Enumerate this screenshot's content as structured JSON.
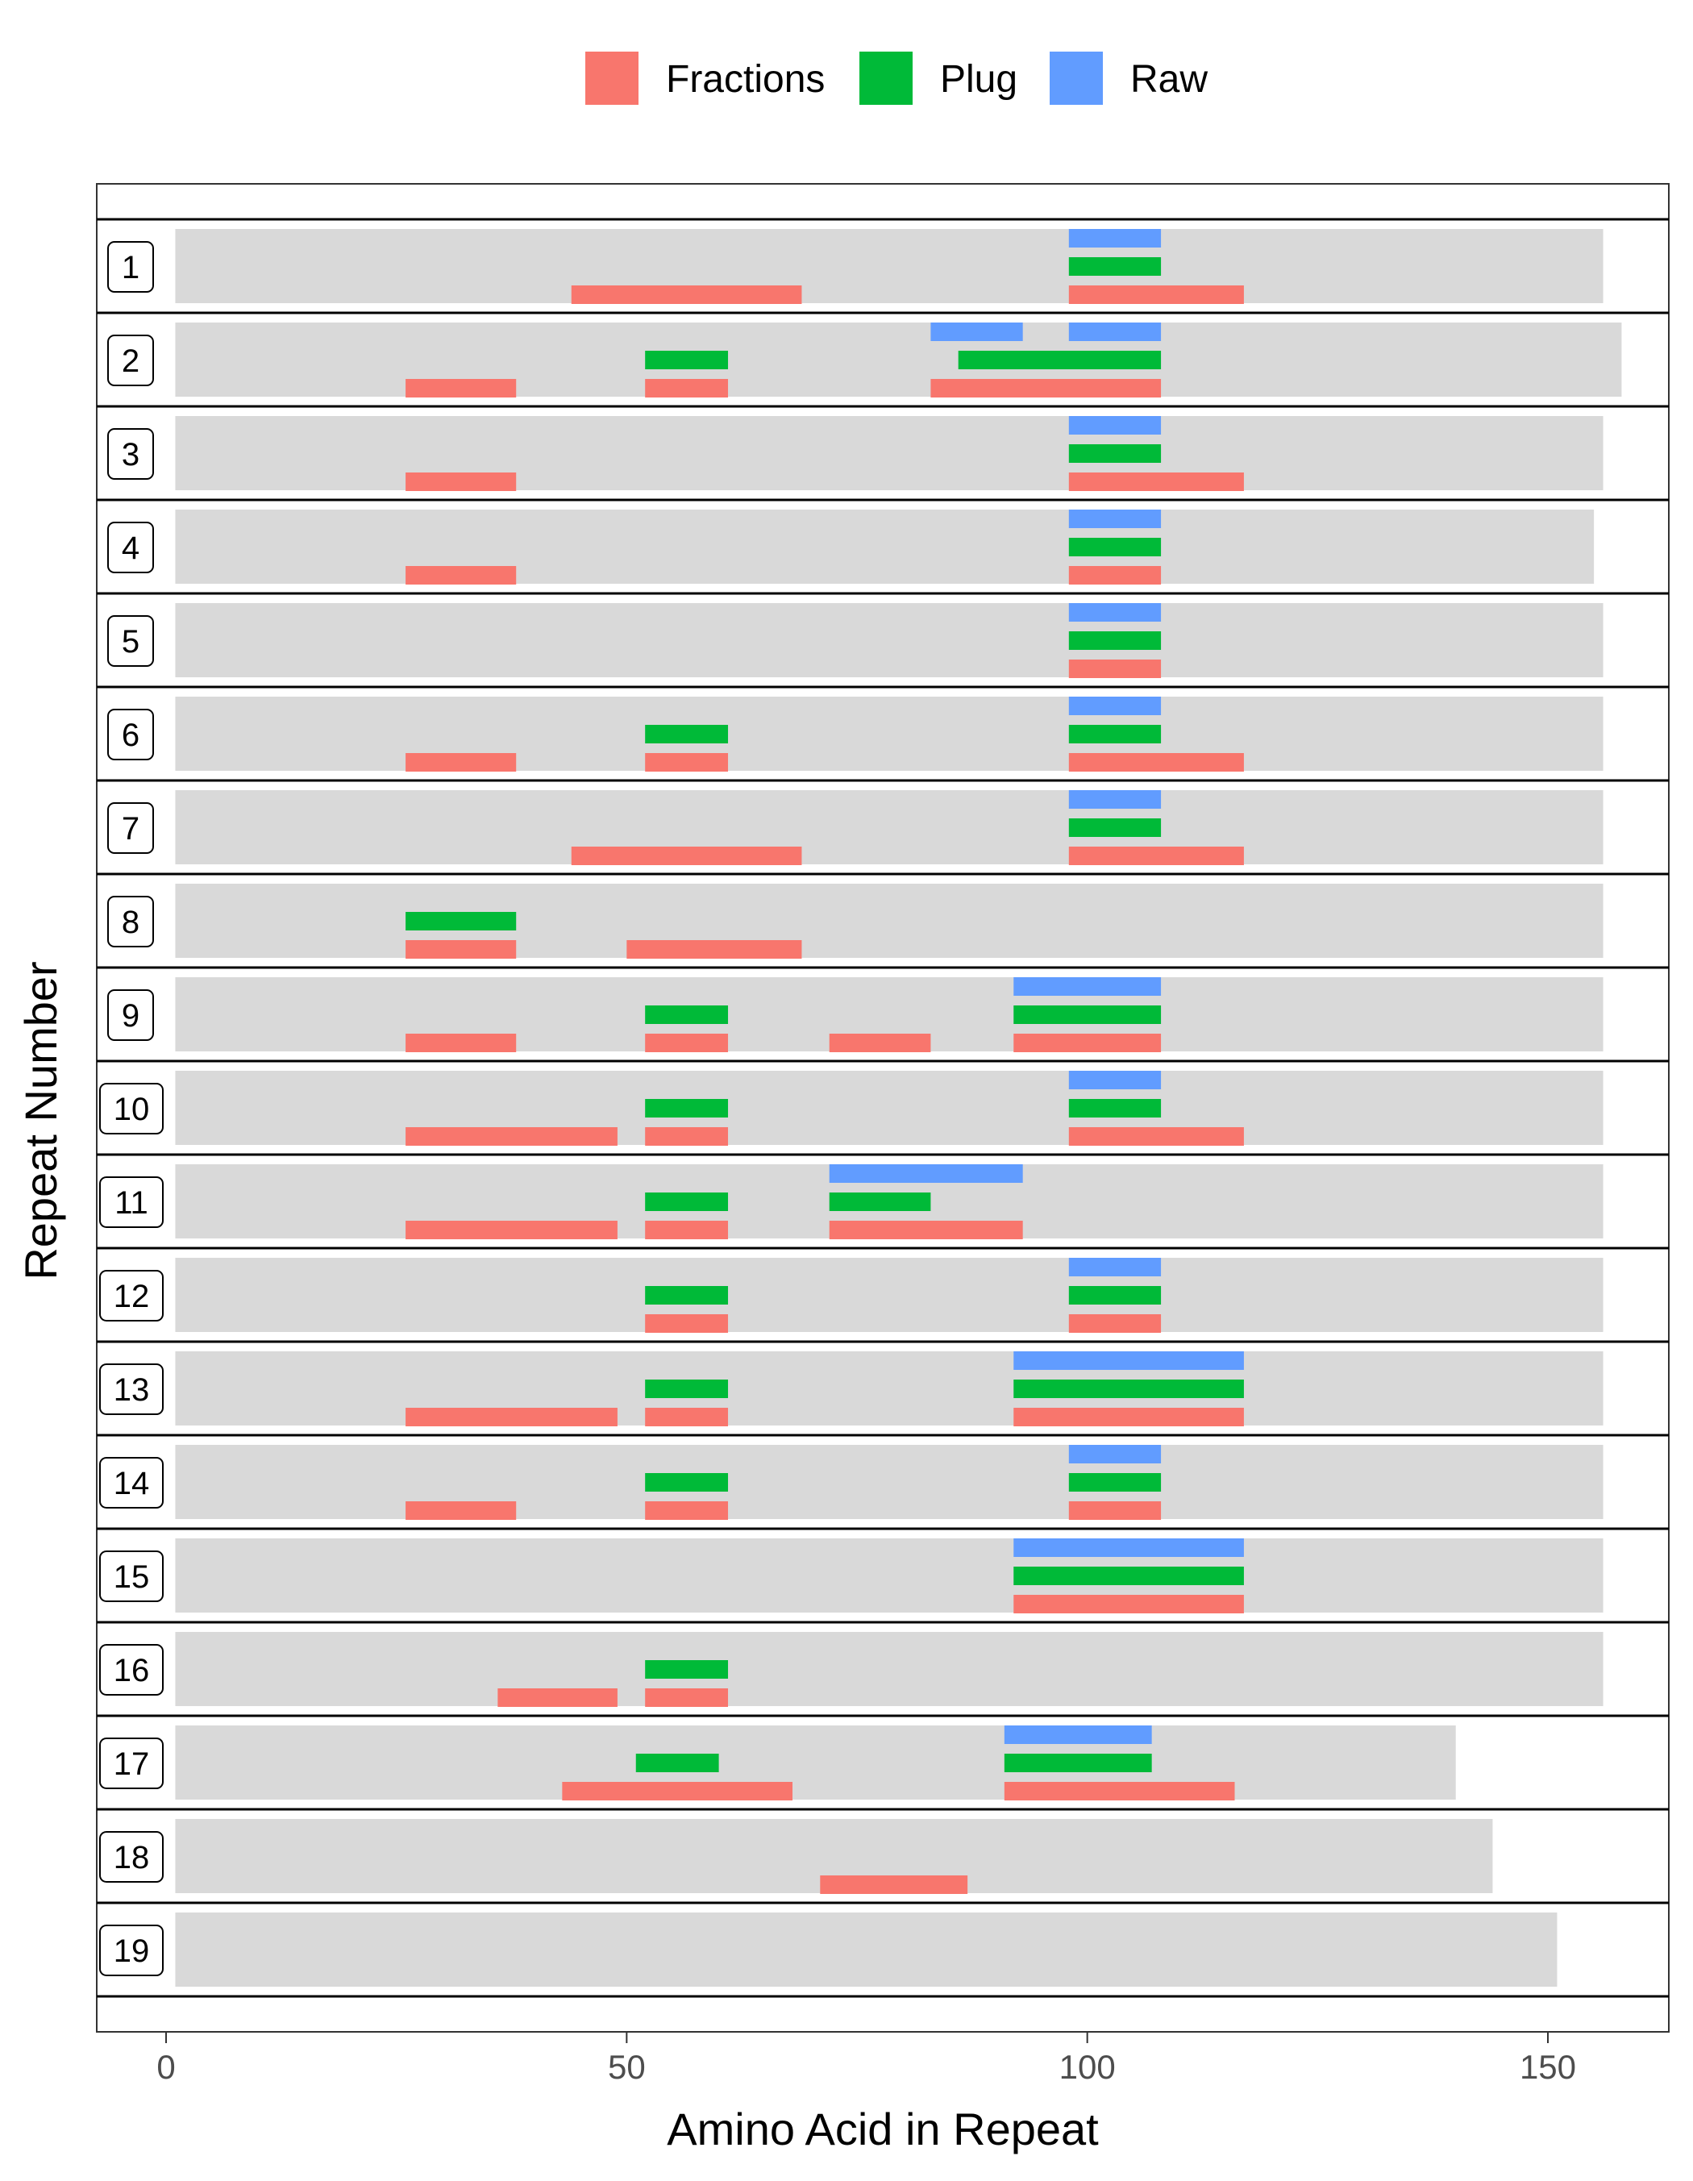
{
  "chart_data": {
    "type": "bar",
    "xlabel": "Amino Acid in Repeat",
    "ylabel": "Repeat Number",
    "xlim": [
      -8,
      163
    ],
    "xticks": [
      0,
      50,
      100,
      150
    ],
    "legend_position": "top",
    "legend": [
      {
        "name": "Fractions",
        "color": "#F8766D"
      },
      {
        "name": "Plug",
        "color": "#00BA38"
      },
      {
        "name": "Raw",
        "color": "#619CFF"
      }
    ],
    "background_color": "#D9D9D9",
    "repeats": [
      {
        "label": "1",
        "length": 156,
        "Raw": [
          [
            98,
            108
          ]
        ],
        "Plug": [
          [
            98,
            108
          ]
        ],
        "Fractions": [
          [
            44,
            69
          ],
          [
            98,
            117
          ]
        ]
      },
      {
        "label": "2",
        "length": 158,
        "Raw": [
          [
            83,
            93
          ],
          [
            98,
            108
          ]
        ],
        "Plug": [
          [
            52,
            61
          ],
          [
            86,
            108
          ]
        ],
        "Fractions": [
          [
            26,
            38
          ],
          [
            52,
            61
          ],
          [
            83,
            108
          ]
        ]
      },
      {
        "label": "3",
        "length": 156,
        "Raw": [
          [
            98,
            108
          ]
        ],
        "Plug": [
          [
            98,
            108
          ]
        ],
        "Fractions": [
          [
            26,
            38
          ],
          [
            98,
            117
          ]
        ]
      },
      {
        "label": "4",
        "length": 155,
        "Raw": [
          [
            98,
            108
          ]
        ],
        "Plug": [
          [
            98,
            108
          ]
        ],
        "Fractions": [
          [
            26,
            38
          ],
          [
            98,
            108
          ]
        ]
      },
      {
        "label": "5",
        "length": 156,
        "Raw": [
          [
            98,
            108
          ]
        ],
        "Plug": [
          [
            98,
            108
          ]
        ],
        "Fractions": [
          [
            98,
            108
          ]
        ]
      },
      {
        "label": "6",
        "length": 156,
        "Raw": [
          [
            98,
            108
          ]
        ],
        "Plug": [
          [
            52,
            61
          ],
          [
            98,
            108
          ]
        ],
        "Fractions": [
          [
            26,
            38
          ],
          [
            52,
            61
          ],
          [
            98,
            117
          ]
        ]
      },
      {
        "label": "7",
        "length": 156,
        "Raw": [
          [
            98,
            108
          ]
        ],
        "Plug": [
          [
            98,
            108
          ]
        ],
        "Fractions": [
          [
            44,
            69
          ],
          [
            98,
            117
          ]
        ]
      },
      {
        "label": "8",
        "length": 156,
        "Raw": [],
        "Plug": [
          [
            26,
            38
          ]
        ],
        "Fractions": [
          [
            26,
            38
          ],
          [
            50,
            69
          ]
        ]
      },
      {
        "label": "9",
        "length": 156,
        "Raw": [
          [
            92,
            108
          ]
        ],
        "Plug": [
          [
            52,
            61
          ],
          [
            92,
            108
          ]
        ],
        "Fractions": [
          [
            26,
            38
          ],
          [
            52,
            61
          ],
          [
            72,
            83
          ],
          [
            92,
            108
          ]
        ]
      },
      {
        "label": "10",
        "length": 156,
        "Raw": [
          [
            98,
            108
          ]
        ],
        "Plug": [
          [
            52,
            61
          ],
          [
            98,
            108
          ]
        ],
        "Fractions": [
          [
            26,
            49
          ],
          [
            52,
            61
          ],
          [
            98,
            117
          ]
        ]
      },
      {
        "label": "11",
        "length": 156,
        "Raw": [
          [
            72,
            93
          ]
        ],
        "Plug": [
          [
            52,
            61
          ],
          [
            72,
            83
          ]
        ],
        "Fractions": [
          [
            26,
            49
          ],
          [
            52,
            61
          ],
          [
            72,
            93
          ]
        ]
      },
      {
        "label": "12",
        "length": 156,
        "Raw": [
          [
            98,
            108
          ]
        ],
        "Plug": [
          [
            52,
            61
          ],
          [
            98,
            108
          ]
        ],
        "Fractions": [
          [
            52,
            61
          ],
          [
            98,
            108
          ]
        ]
      },
      {
        "label": "13",
        "length": 156,
        "Raw": [
          [
            92,
            117
          ]
        ],
        "Plug": [
          [
            52,
            61
          ],
          [
            92,
            117
          ]
        ],
        "Fractions": [
          [
            26,
            49
          ],
          [
            52,
            61
          ],
          [
            92,
            117
          ]
        ]
      },
      {
        "label": "14",
        "length": 156,
        "Raw": [
          [
            98,
            108
          ]
        ],
        "Plug": [
          [
            52,
            61
          ],
          [
            98,
            108
          ]
        ],
        "Fractions": [
          [
            26,
            38
          ],
          [
            52,
            61
          ],
          [
            98,
            108
          ]
        ]
      },
      {
        "label": "15",
        "length": 156,
        "Raw": [
          [
            92,
            117
          ]
        ],
        "Plug": [
          [
            92,
            117
          ]
        ],
        "Fractions": [
          [
            92,
            117
          ]
        ]
      },
      {
        "label": "16",
        "length": 156,
        "Raw": [],
        "Plug": [
          [
            52,
            61
          ]
        ],
        "Fractions": [
          [
            36,
            49
          ],
          [
            52,
            61
          ]
        ]
      },
      {
        "label": "17",
        "length": 140,
        "Raw": [
          [
            91,
            107
          ]
        ],
        "Plug": [
          [
            51,
            60
          ],
          [
            91,
            107
          ]
        ],
        "Fractions": [
          [
            43,
            68
          ],
          [
            91,
            116
          ]
        ]
      },
      {
        "label": "18",
        "length": 144,
        "Raw": [],
        "Plug": [],
        "Fractions": [
          [
            71,
            87
          ]
        ]
      },
      {
        "label": "19",
        "length": 151,
        "Raw": [],
        "Plug": [],
        "Fractions": []
      }
    ]
  }
}
